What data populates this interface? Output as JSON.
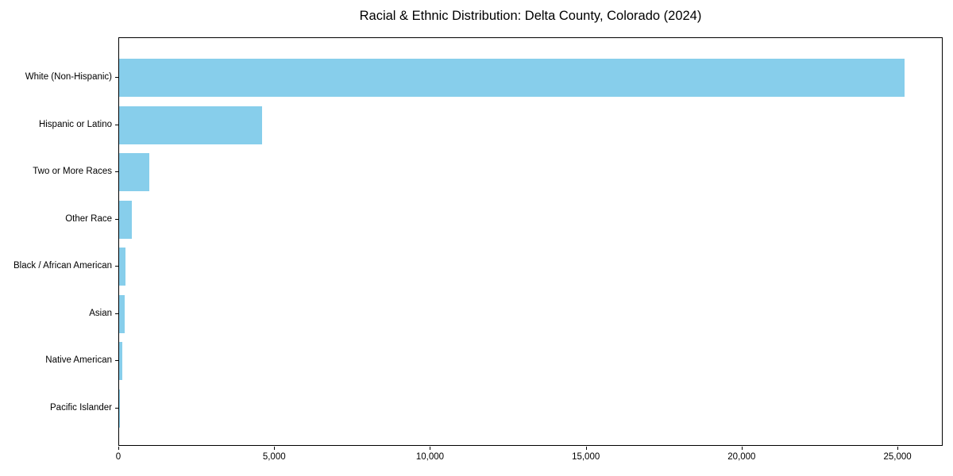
{
  "title": "Racial & Ethnic Distribution: Delta County, Colorado (2024)",
  "chart_data": {
    "type": "bar",
    "orientation": "horizontal",
    "title": "Racial & Ethnic Distribution: Delta County, Colorado (2024)",
    "categories": [
      "White (Non-Hispanic)",
      "Hispanic or Latino",
      "Two or More Races",
      "Other Race",
      "Black / African American",
      "Asian",
      "Native American",
      "Pacific Islander"
    ],
    "values": [
      25200,
      4590,
      975,
      410,
      205,
      170,
      90,
      20
    ],
    "xlabel": "",
    "ylabel": "",
    "xlim": [
      0,
      26450
    ],
    "x_ticks": [
      0,
      5000,
      10000,
      15000,
      20000,
      25000
    ],
    "x_tick_labels": [
      "0",
      "5,000",
      "10,000",
      "15,000",
      "20,000",
      "25,000"
    ],
    "bar_color": "#87CEEB",
    "grid": false,
    "legend_position": "none",
    "sort_order": "descending, largest at top"
  }
}
